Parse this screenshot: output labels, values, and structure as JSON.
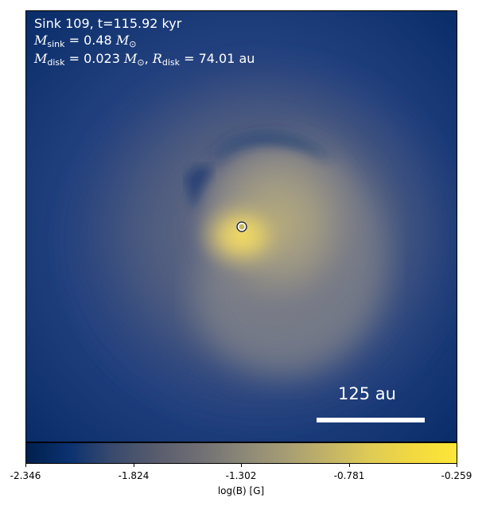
{
  "annotation": {
    "line1": "Sink 109, t=115.92 kyr",
    "m_sink_value": "0.48",
    "m_disk_value": "0.023",
    "r_disk_value": "74.01",
    "unit_au": "au"
  },
  "scalebar": {
    "label": "125 au"
  },
  "colorbar": {
    "label": "log(B) [G]",
    "ticks": [
      "-2.346",
      "-1.824",
      "-1.302",
      "-0.781",
      "-0.259"
    ],
    "min": -2.346,
    "max": -0.259,
    "colormap": "cividis"
  },
  "colors": {
    "background_field": "#16377c",
    "core": "#e8d36a",
    "sink_marker": "#ffffff",
    "text": "#ffffff"
  }
}
